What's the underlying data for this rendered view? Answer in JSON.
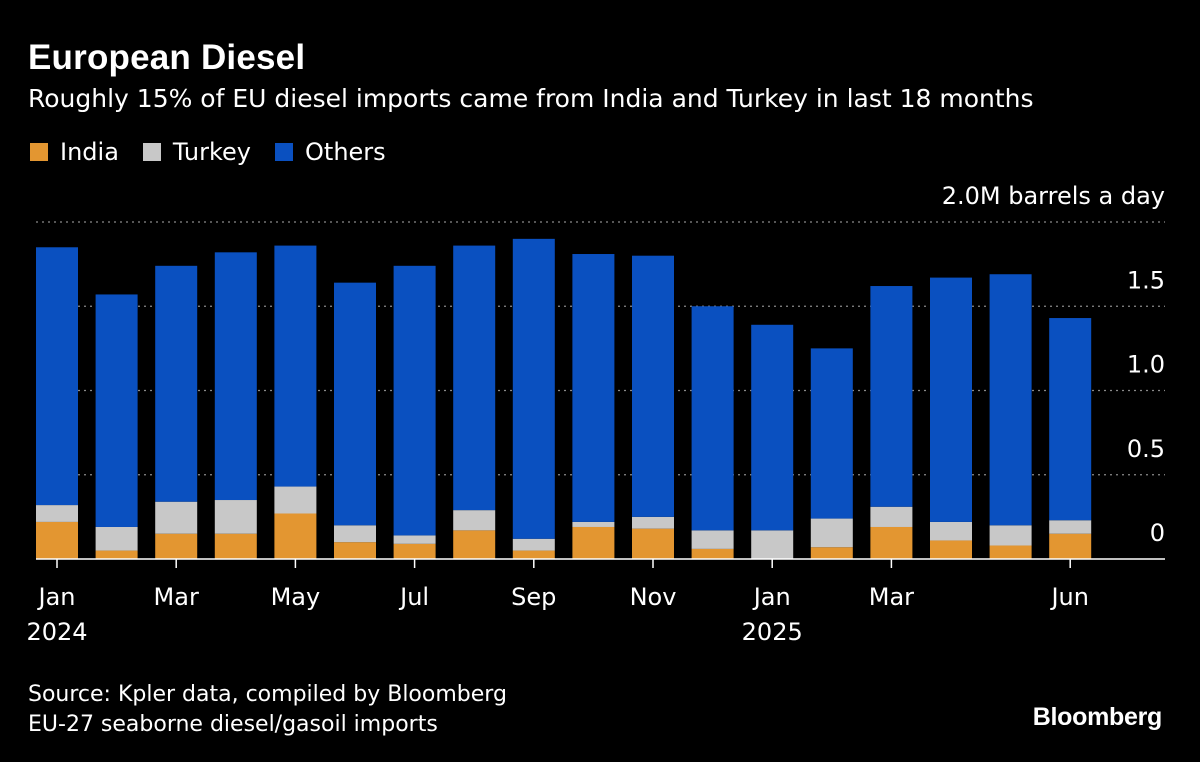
{
  "header": {
    "title": "European Diesel",
    "subtitle": "Roughly 15% of EU diesel imports came from India and Turkey in last 18 months"
  },
  "legend": [
    {
      "label": "India",
      "color": "#e39631"
    },
    {
      "label": "Turkey",
      "color": "#c8c8c8"
    },
    {
      "label": "Others",
      "color": "#0a50c0"
    }
  ],
  "footer": {
    "source": "Source: Kpler data, compiled by Bloomberg",
    "note": "EU-27 seaborne diesel/gasoil imports",
    "brand": "Bloomberg"
  },
  "chart_data": {
    "type": "bar",
    "stacked": true,
    "title": "European Diesel",
    "subtitle": "Roughly 15% of EU diesel imports came from India and Turkey in last 18 months",
    "unit_label": "2.0M barrels a day",
    "ylim": [
      0,
      2.0
    ],
    "yticks": [
      {
        "value": 0,
        "label": "0"
      },
      {
        "value": 0.5,
        "label": "0.5"
      },
      {
        "value": 1.0,
        "label": "1.0"
      },
      {
        "value": 1.5,
        "label": "1.5"
      },
      {
        "value": 2.0,
        "label": ""
      }
    ],
    "categories": [
      "Jan 2024",
      "Feb 2024",
      "Mar 2024",
      "Apr 2024",
      "May 2024",
      "Jun 2024",
      "Jul 2024",
      "Aug 2024",
      "Sep 2024",
      "Oct 2024",
      "Nov 2024",
      "Dec 2024",
      "Jan 2025",
      "Feb 2025",
      "Mar 2025",
      "Apr 2025",
      "May 2025",
      "Jun 2025"
    ],
    "xtick_labels": [
      {
        "index": 0,
        "label": "Jan",
        "year": "2024"
      },
      {
        "index": 2,
        "label": "Mar",
        "year": ""
      },
      {
        "index": 4,
        "label": "May",
        "year": ""
      },
      {
        "index": 6,
        "label": "Jul",
        "year": ""
      },
      {
        "index": 8,
        "label": "Sep",
        "year": ""
      },
      {
        "index": 10,
        "label": "Nov",
        "year": ""
      },
      {
        "index": 12,
        "label": "Jan",
        "year": "2025"
      },
      {
        "index": 14,
        "label": "Mar",
        "year": ""
      },
      {
        "index": 17,
        "label": "Jun",
        "year": ""
      }
    ],
    "series": [
      {
        "name": "India",
        "color": "#e39631",
        "values": [
          0.22,
          0.05,
          0.15,
          0.15,
          0.27,
          0.1,
          0.09,
          0.17,
          0.05,
          0.19,
          0.18,
          0.06,
          0.0,
          0.07,
          0.19,
          0.11,
          0.08,
          0.15
        ]
      },
      {
        "name": "Turkey",
        "color": "#c8c8c8",
        "values": [
          0.1,
          0.14,
          0.19,
          0.2,
          0.16,
          0.1,
          0.05,
          0.12,
          0.07,
          0.03,
          0.07,
          0.11,
          0.17,
          0.17,
          0.12,
          0.11,
          0.12,
          0.08
        ]
      },
      {
        "name": "Others",
        "color": "#0a50c0",
        "values": [
          1.53,
          1.38,
          1.4,
          1.47,
          1.43,
          1.44,
          1.6,
          1.57,
          1.78,
          1.59,
          1.55,
          1.33,
          1.22,
          1.01,
          1.31,
          1.45,
          1.49,
          1.2
        ]
      }
    ]
  }
}
